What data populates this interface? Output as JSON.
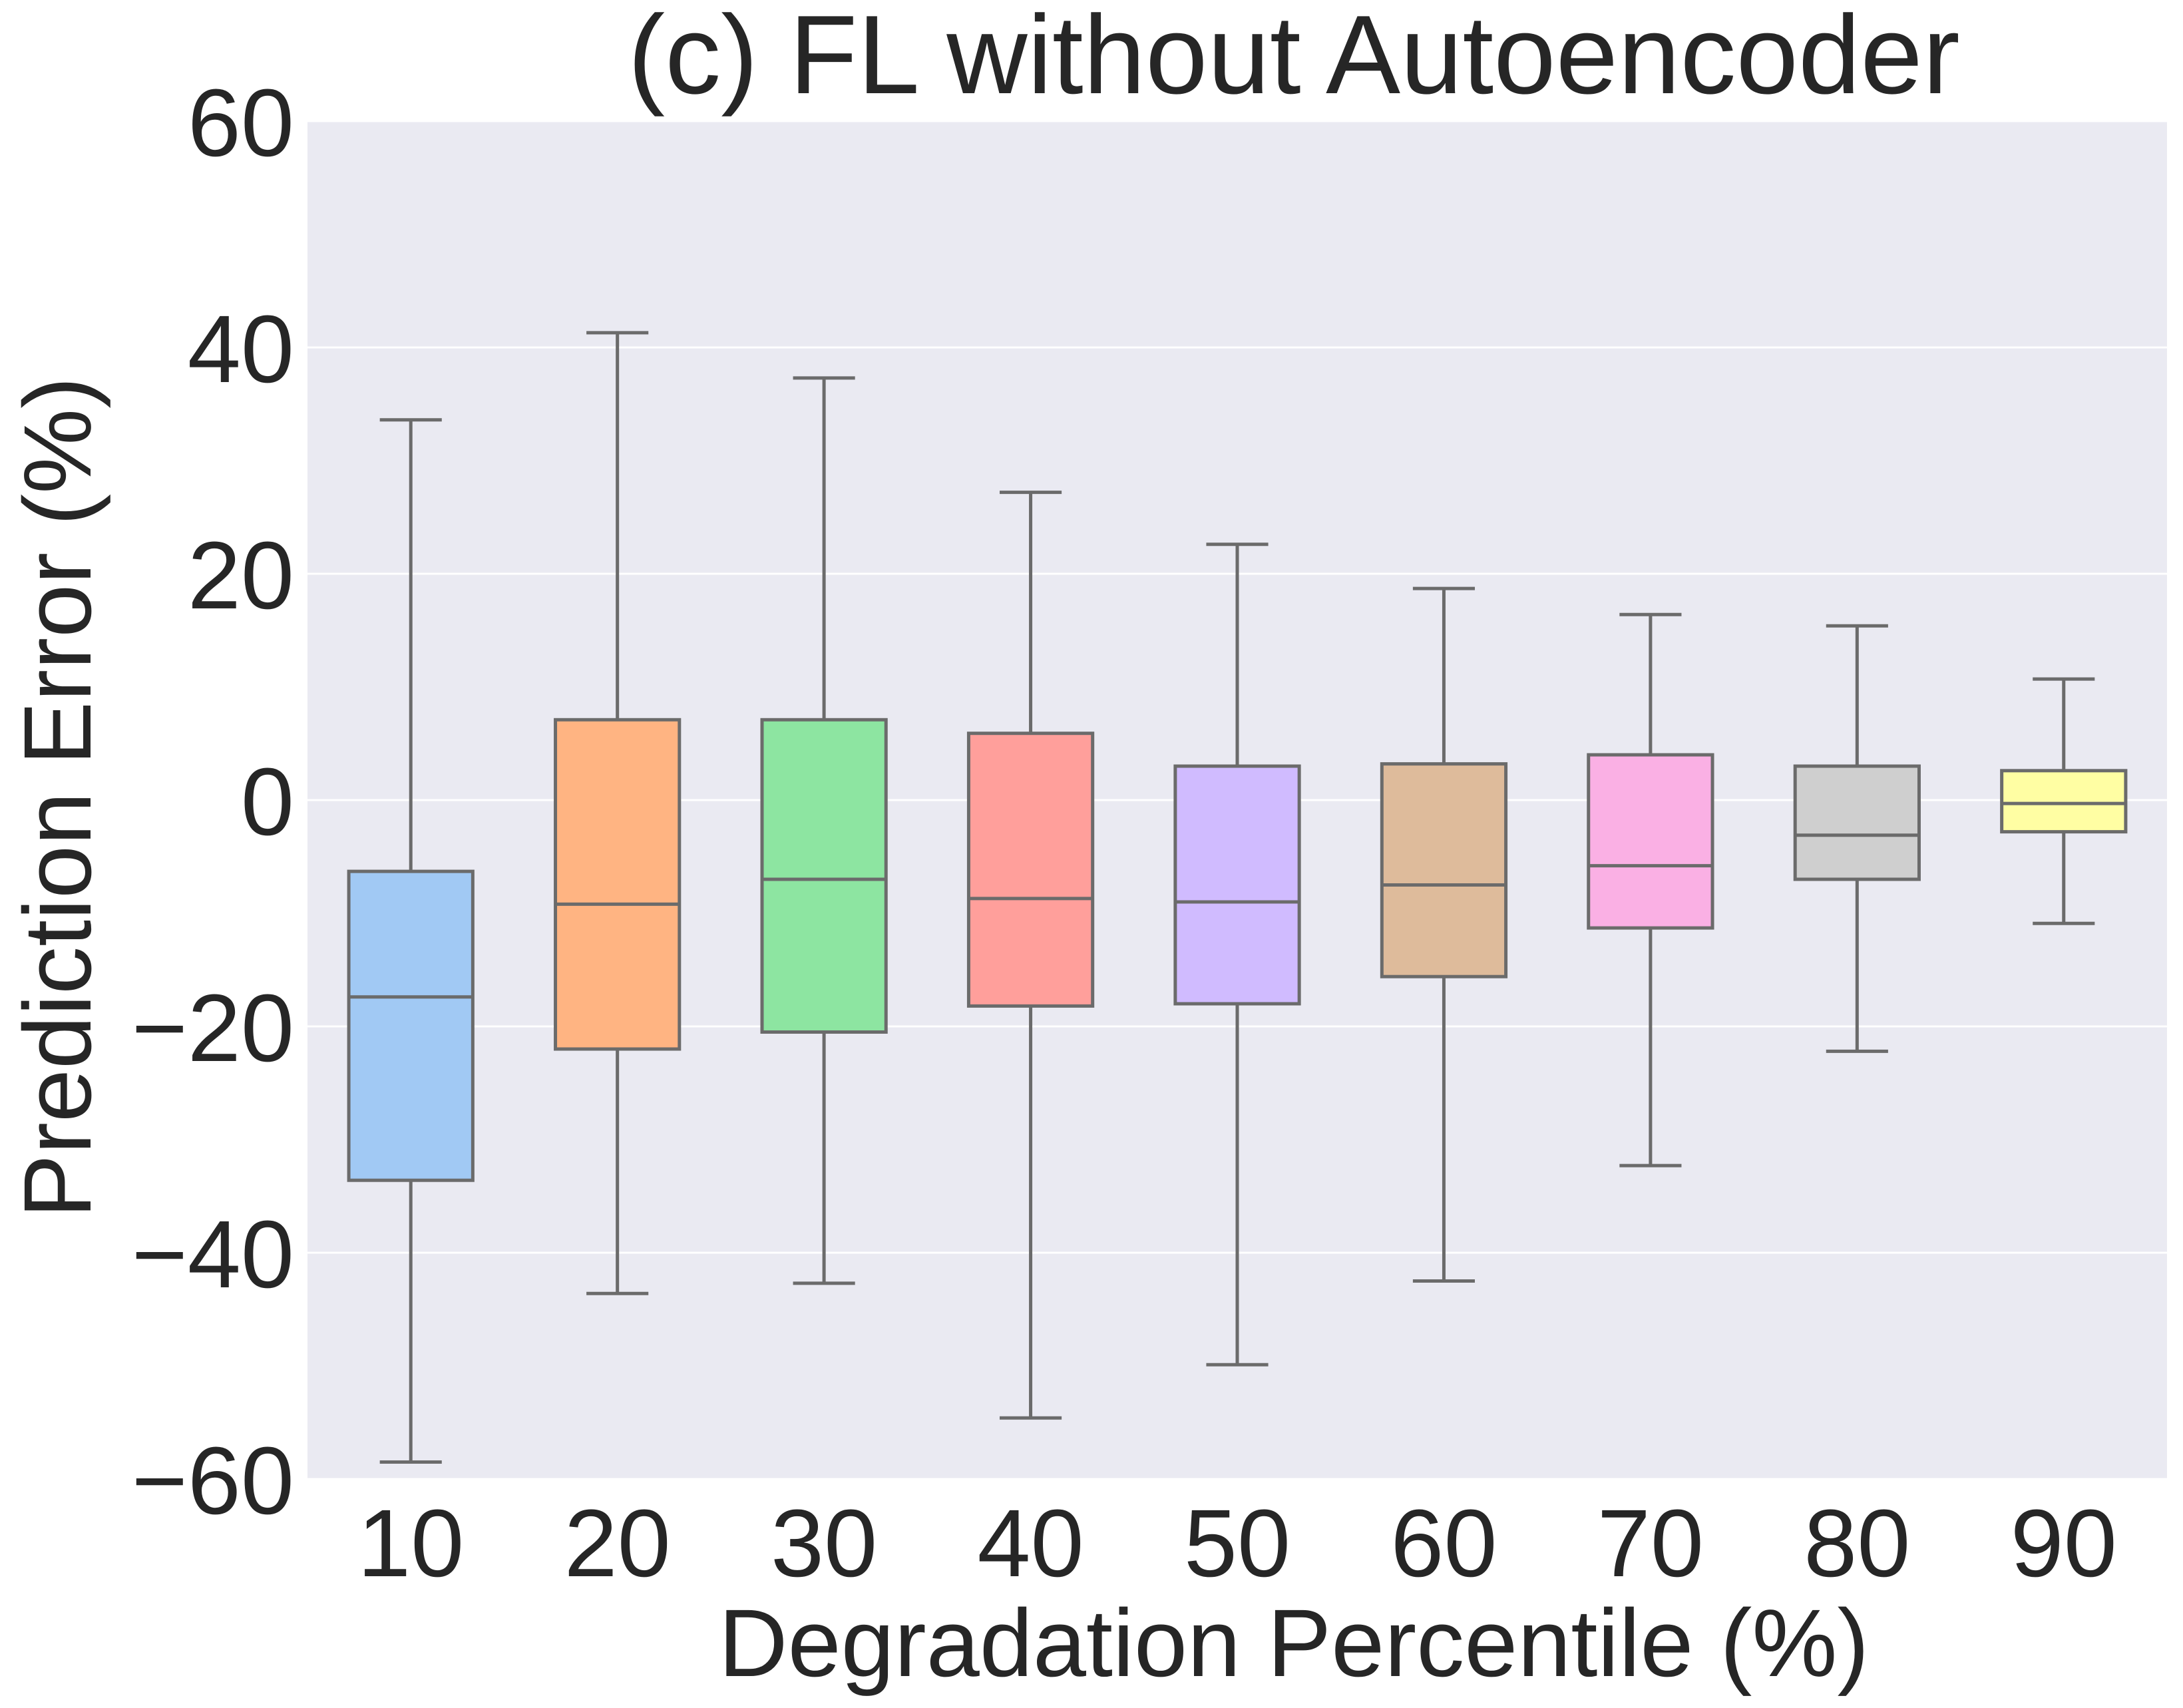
{
  "chart_data": {
    "type": "box",
    "title": "(c) FL without Autoencoder",
    "xlabel": "Degradation Percentile (%)",
    "ylabel": "Prediction Error (%)",
    "ylim": [
      -60,
      60
    ],
    "yticks": [
      60,
      40,
      20,
      0,
      -20,
      -40,
      -60
    ],
    "ytick_labels": [
      "60",
      "40",
      "20",
      "0",
      "−20",
      "−40",
      "−60"
    ],
    "grid": true,
    "categories": [
      "10",
      "20",
      "30",
      "40",
      "50",
      "60",
      "70",
      "80",
      "90"
    ],
    "boxes": [
      {
        "category": "10",
        "whisker_low": -58.5,
        "q1": -33.6,
        "median": -17.4,
        "q3": -6.3,
        "whisker_high": 33.6,
        "color": "#a1c9f4"
      },
      {
        "category": "20",
        "whisker_low": -43.6,
        "q1": -22.0,
        "median": -9.2,
        "q3": 7.1,
        "whisker_high": 41.3,
        "color": "#ffb482"
      },
      {
        "category": "30",
        "whisker_low": -42.7,
        "q1": -20.5,
        "median": -7.0,
        "q3": 7.1,
        "whisker_high": 37.3,
        "color": "#8de5a1"
      },
      {
        "category": "40",
        "whisker_low": -54.6,
        "q1": -18.2,
        "median": -8.7,
        "q3": 5.9,
        "whisker_high": 27.2,
        "color": "#ff9f9b"
      },
      {
        "category": "50",
        "whisker_low": -49.9,
        "q1": -18.0,
        "median": -9.0,
        "q3": 3.0,
        "whisker_high": 22.6,
        "color": "#d0bbff"
      },
      {
        "category": "60",
        "whisker_low": -42.5,
        "q1": -15.6,
        "median": -7.5,
        "q3": 3.2,
        "whisker_high": 18.7,
        "color": "#debb9b"
      },
      {
        "category": "70",
        "whisker_low": -32.3,
        "q1": -11.3,
        "median": -5.8,
        "q3": 4.0,
        "whisker_high": 16.4,
        "color": "#fab0e4"
      },
      {
        "category": "80",
        "whisker_low": -22.2,
        "q1": -7.0,
        "median": -3.1,
        "q3": 3.0,
        "whisker_high": 15.4,
        "color": "#cfcfcf"
      },
      {
        "category": "90",
        "whisker_low": -10.9,
        "q1": -2.8,
        "median": -0.3,
        "q3": 2.6,
        "whisker_high": 10.7,
        "color": "#fffea3"
      }
    ],
    "colors": {
      "plot_background": "#eaeaf2",
      "gridline": "#ffffff",
      "box_edge": "#6b6b6b",
      "text": "#262626"
    }
  }
}
